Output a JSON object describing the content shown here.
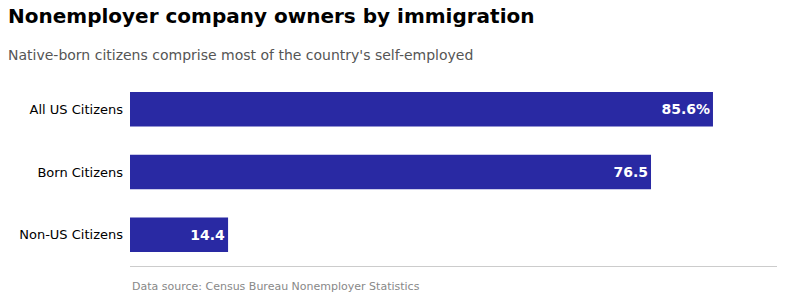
{
  "chart_data": {
    "type": "bar",
    "orientation": "horizontal",
    "title": "Nonemployer company owners by immigration",
    "subtitle": "Native-born citizens comprise most of the country's self-employed",
    "annotations": [
      "Data source: Census Bureau Nonemployer Statistics"
    ],
    "categories": [
      "All US Citizens",
      "Born Citizens",
      "Non-US Citizens"
    ],
    "values": [
      85.6,
      76.5,
      14.4
    ],
    "value_labels": [
      "85.6%",
      "76.5",
      "14.4"
    ],
    "data_labels": true,
    "color": "#2929a3",
    "xlim": [
      0,
      95
    ],
    "grid": false,
    "tick_labels": "y"
  }
}
